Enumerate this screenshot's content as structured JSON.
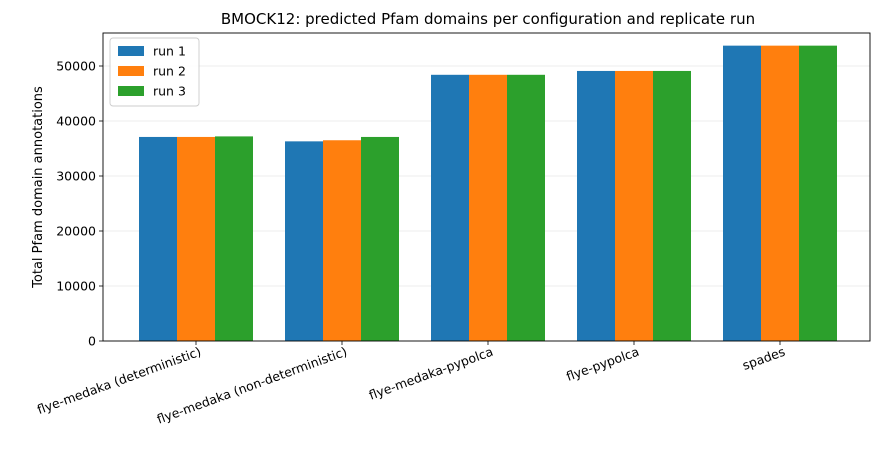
{
  "chart_data": {
    "type": "bar",
    "title": "BMOCK12: predicted Pfam domains per configuration and replicate run",
    "xlabel": "",
    "ylabel": "Total Pfam domain annotations",
    "categories": [
      "flye-medaka (deterministic)",
      "flye-medaka (non-deterministic)",
      "flye-medaka-pypolca",
      "flye-pypolca",
      "spades"
    ],
    "series": [
      {
        "name": "run 1",
        "color": "#1f77b4",
        "values": [
          37100,
          36300,
          48400,
          49100,
          53700
        ]
      },
      {
        "name": "run 2",
        "color": "#ff7f0e",
        "values": [
          37100,
          36500,
          48400,
          49100,
          53700
        ]
      },
      {
        "name": "run 3",
        "color": "#2ca02c",
        "values": [
          37200,
          37100,
          48400,
          49100,
          53700
        ]
      }
    ],
    "ylim": [
      0,
      56000
    ],
    "yticks": [
      0,
      10000,
      20000,
      30000,
      40000,
      50000
    ],
    "ytick_labels": [
      "0",
      "10000",
      "20000",
      "30000",
      "40000",
      "50000"
    ],
    "grid": "y",
    "legend_position": "top-left"
  }
}
